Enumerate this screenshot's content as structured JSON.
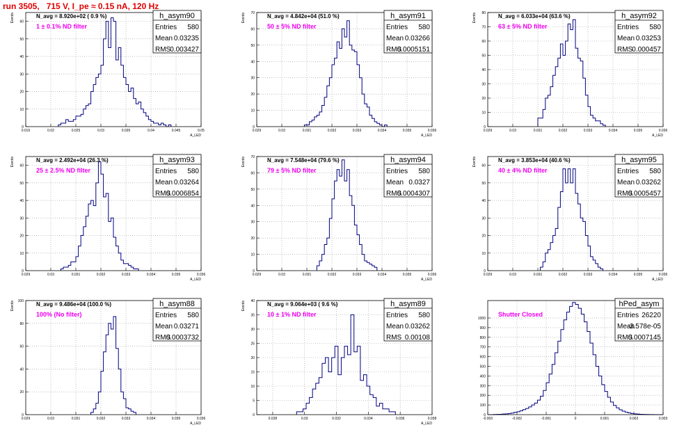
{
  "page_title": "run 3505,   715 V, I_pe ≈ 0.15 nA, 120 Hz",
  "stats_labels": {
    "entries": "Entries",
    "mean": "Mean",
    "rms": "RMS"
  },
  "colors": {
    "histogram": "#000080",
    "grid": "#9a9a9a",
    "annotation": "#ee00ee",
    "title": "#e00000"
  },
  "chart_data": [
    {
      "type": "bar",
      "hist_name": "h_asym90",
      "n_avg_text": "N_avg = 8.920e+02 ( 0.9 %)",
      "filter_text": "1 ± 0.1% ND filter",
      "entries": "580",
      "mean": "0.03235",
      "rms": "0.003427",
      "xlabel": "A_LED",
      "ylabel": "Events",
      "xlim": [
        0.015,
        0.05
      ],
      "ylim": [
        0,
        65
      ],
      "grid": true,
      "xticks": [
        "0.015",
        "0.02",
        "0.025",
        "0.03",
        "0.035",
        "0.04",
        "0.045",
        "0.05"
      ],
      "yticks": [
        "0",
        "10",
        "20",
        "30",
        "40",
        "50",
        "60"
      ],
      "bins": {
        "start": 0.0215,
        "width": 0.0005,
        "counts": [
          1,
          2,
          2,
          4,
          3,
          3,
          4,
          6,
          6,
          7,
          10,
          12,
          13,
          20,
          24,
          28,
          30,
          35,
          50,
          60,
          45,
          62,
          60,
          38,
          45,
          35,
          28,
          24,
          20,
          22,
          16,
          13,
          14,
          10,
          8,
          6,
          4,
          3,
          2,
          2,
          1,
          2,
          1,
          0,
          1
        ]
      }
    },
    {
      "type": "bar",
      "hist_name": "h_asym91",
      "n_avg_text": "N_avg = 4.842e+04 (51.0 %)",
      "filter_text": "50 ± 5% ND filter",
      "entries": "580",
      "mean": "0.03266",
      "rms": "0.0005151",
      "xlabel": "A_LED",
      "ylabel": "Events",
      "xlim": [
        0.029,
        0.036
      ],
      "ylim": [
        0,
        70
      ],
      "grid": true,
      "xticks": [
        "0.029",
        "0.03",
        "0.031",
        "0.032",
        "0.033",
        "0.034",
        "0.035",
        "0.036"
      ],
      "yticks": [
        "0",
        "10",
        "20",
        "30",
        "40",
        "50",
        "60",
        "70"
      ],
      "bins": {
        "start": 0.0309,
        "width": 0.0001,
        "counts": [
          1,
          1,
          3,
          4,
          6,
          7,
          9,
          13,
          18,
          25,
          30,
          38,
          42,
          52,
          48,
          60,
          55,
          65,
          50,
          47,
          46,
          38,
          30,
          20,
          14,
          12,
          7,
          5,
          3,
          2,
          1,
          0,
          1
        ]
      }
    },
    {
      "type": "bar",
      "hist_name": "h_asym92",
      "n_avg_text": "N_avg = 6.033e+04 (63.6 %)",
      "filter_text": "63 ± 5% ND filter",
      "entries": "580",
      "mean": "0.03253",
      "rms": "0.000457",
      "xlabel": "A_LED",
      "ylabel": "Events",
      "xlim": [
        0.029,
        0.036
      ],
      "ylim": [
        0,
        80
      ],
      "grid": true,
      "xticks": [
        "0.029",
        "0.03",
        "0.031",
        "0.032",
        "0.033",
        "0.034",
        "0.035",
        "0.036"
      ],
      "yticks": [
        "0",
        "10",
        "20",
        "30",
        "40",
        "50",
        "60",
        "70",
        "80"
      ],
      "bins": {
        "start": 0.031,
        "width": 0.0001,
        "counts": [
          6,
          6,
          12,
          20,
          22,
          28,
          36,
          42,
          48,
          58,
          50,
          60,
          72,
          68,
          75,
          55,
          48,
          46,
          34,
          22,
          14,
          8,
          6,
          4,
          4,
          2,
          1
        ]
      }
    },
    {
      "type": "bar",
      "hist_name": "h_asym93",
      "n_avg_text": "N_avg = 2.492e+04 (26.3 %)",
      "filter_text": "25 ± 2.5% ND filter",
      "entries": "580",
      "mean": "0.03264",
      "rms": "0.0006854",
      "xlabel": "A_LED",
      "ylabel": "Events",
      "xlim": [
        0.029,
        0.036
      ],
      "ylim": [
        0,
        65
      ],
      "grid": true,
      "xticks": [
        "0.029",
        "0.03",
        "0.031",
        "0.032",
        "0.033",
        "0.034",
        "0.035",
        "0.036"
      ],
      "yticks": [
        "0",
        "10",
        "20",
        "30",
        "40",
        "50",
        "60"
      ],
      "bins": {
        "start": 0.0304,
        "width": 0.0001,
        "counts": [
          1,
          2,
          2,
          3,
          5,
          5,
          8,
          14,
          20,
          25,
          31,
          38,
          40,
          37,
          50,
          62,
          55,
          42,
          44,
          28,
          30,
          19,
          14,
          10,
          6,
          4,
          4,
          3,
          2,
          1,
          1
        ]
      }
    },
    {
      "type": "bar",
      "hist_name": "h_asym94",
      "n_avg_text": "N_avg = 7.548e+04 (79.6 %)",
      "filter_text": "79 ± 5% ND filter",
      "entries": "580",
      "mean": "0.0327",
      "rms": "0.0004307",
      "xlabel": "A_LED",
      "ylabel": "Events",
      "xlim": [
        0.029,
        0.036
      ],
      "ylim": [
        0,
        70
      ],
      "grid": true,
      "xticks": [
        "0.029",
        "0.03",
        "0.031",
        "0.032",
        "0.033",
        "0.034",
        "0.035",
        "0.036"
      ],
      "yticks": [
        "0",
        "10",
        "20",
        "30",
        "40",
        "50",
        "60",
        "70"
      ],
      "bins": {
        "start": 0.0314,
        "width": 0.0001,
        "counts": [
          3,
          6,
          10,
          16,
          20,
          32,
          44,
          55,
          62,
          58,
          68,
          55,
          62,
          46,
          40,
          28,
          22,
          16,
          10,
          6,
          5,
          4,
          3,
          2
        ]
      }
    },
    {
      "type": "bar",
      "hist_name": "h_asym95",
      "n_avg_text": "N_avg = 3.853e+04 (40.6 %)",
      "filter_text": "40 ± 4% ND filter",
      "entries": "580",
      "mean": "0.03262",
      "rms": "0.0005457",
      "xlabel": "A_LED",
      "ylabel": "Events",
      "xlim": [
        0.029,
        0.036
      ],
      "ylim": [
        0,
        65
      ],
      "grid": true,
      "xticks": [
        "0.029",
        "0.03",
        "0.031",
        "0.032",
        "0.033",
        "0.034",
        "0.035",
        "0.036"
      ],
      "yticks": [
        "0",
        "10",
        "20",
        "30",
        "40",
        "50",
        "60"
      ],
      "bins": {
        "start": 0.0311,
        "width": 0.0001,
        "counts": [
          2,
          5,
          10,
          12,
          16,
          20,
          24,
          36,
          45,
          58,
          50,
          58,
          50,
          58,
          44,
          38,
          30,
          28,
          20,
          14,
          8,
          6,
          4,
          2,
          1
        ]
      }
    },
    {
      "type": "bar",
      "hist_name": "h_asym88",
      "n_avg_text": "N_avg = 9.486e+04 (100.0 %)",
      "filter_text": "100% (No filter)",
      "entries": "580",
      "mean": "0.03271",
      "rms": "0.0003732",
      "xlabel": "A_LED",
      "ylabel": "Events",
      "xlim": [
        0.029,
        0.036
      ],
      "ylim": [
        0,
        100
      ],
      "grid": true,
      "xticks": [
        "0.029",
        "0.03",
        "0.031",
        "0.032",
        "0.033",
        "0.034",
        "0.035",
        "0.036"
      ],
      "yticks": [
        "0",
        "20",
        "40",
        "60",
        "80",
        "100"
      ],
      "bins": {
        "start": 0.0316,
        "width": 0.0001,
        "counts": [
          2,
          5,
          10,
          20,
          38,
          55,
          70,
          80,
          75,
          86,
          58,
          40,
          20,
          14,
          6,
          5,
          3,
          2
        ]
      }
    },
    {
      "type": "bar",
      "hist_name": "h_asym89",
      "n_avg_text": "N_avg = 9.064e+03 ( 9.6 %)",
      "filter_text": "10 ± 1% ND filter",
      "entries": "580",
      "mean": "0.03262",
      "rms": "0.00108",
      "xlabel": "A_LED",
      "ylabel": "Events",
      "xlim": [
        0.027,
        0.038
      ],
      "ylim": [
        0,
        40
      ],
      "grid": true,
      "xticks": [
        "0.028",
        "0.03",
        "0.032",
        "0.034",
        "0.036",
        "0.038"
      ],
      "yticks": [
        "0",
        "5",
        "10",
        "15",
        "20",
        "25",
        "30",
        "35",
        "40"
      ],
      "bins": {
        "start": 0.0295,
        "width": 0.0002,
        "counts": [
          1,
          1,
          2,
          4,
          6,
          9,
          11,
          13,
          18,
          20,
          15,
          20,
          24,
          14,
          20,
          24,
          21,
          35,
          22,
          24,
          12,
          14,
          10,
          7,
          6,
          3,
          4,
          2,
          2,
          1,
          1
        ]
      }
    },
    {
      "type": "bar",
      "hist_name": "hPed_asym",
      "n_avg_text": "",
      "filter_text": "Shutter Closed",
      "entries": "26220",
      "mean": "-3.578e-05",
      "rms": "0.0007145",
      "xlabel": "",
      "ylabel": "",
      "xlim": [
        -0.003,
        0.003
      ],
      "ylim": [
        0,
        1180
      ],
      "grid": true,
      "xticks": [
        "-0.003",
        "-0.002",
        "-0.001",
        "0",
        "0.001",
        "0.002",
        "0.003"
      ],
      "yticks": [
        "0",
        "100",
        "200",
        "300",
        "400",
        "500",
        "600",
        "700",
        "800",
        "900",
        "1000"
      ],
      "bins": {
        "start": -0.003,
        "width": 0.0001,
        "counts": [
          0,
          0,
          2,
          3,
          4,
          6,
          8,
          12,
          16,
          24,
          30,
          40,
          52,
          64,
          80,
          100,
          120,
          150,
          190,
          250,
          330,
          420,
          520,
          640,
          760,
          880,
          980,
          1060,
          1120,
          1160,
          1140,
          1100,
          1040,
          960,
          860,
          740,
          620,
          500,
          400,
          310,
          240,
          180,
          130,
          95,
          70,
          50,
          36,
          26,
          18,
          12,
          8,
          6,
          4,
          3,
          2,
          1,
          1,
          0,
          0,
          0
        ]
      }
    }
  ]
}
